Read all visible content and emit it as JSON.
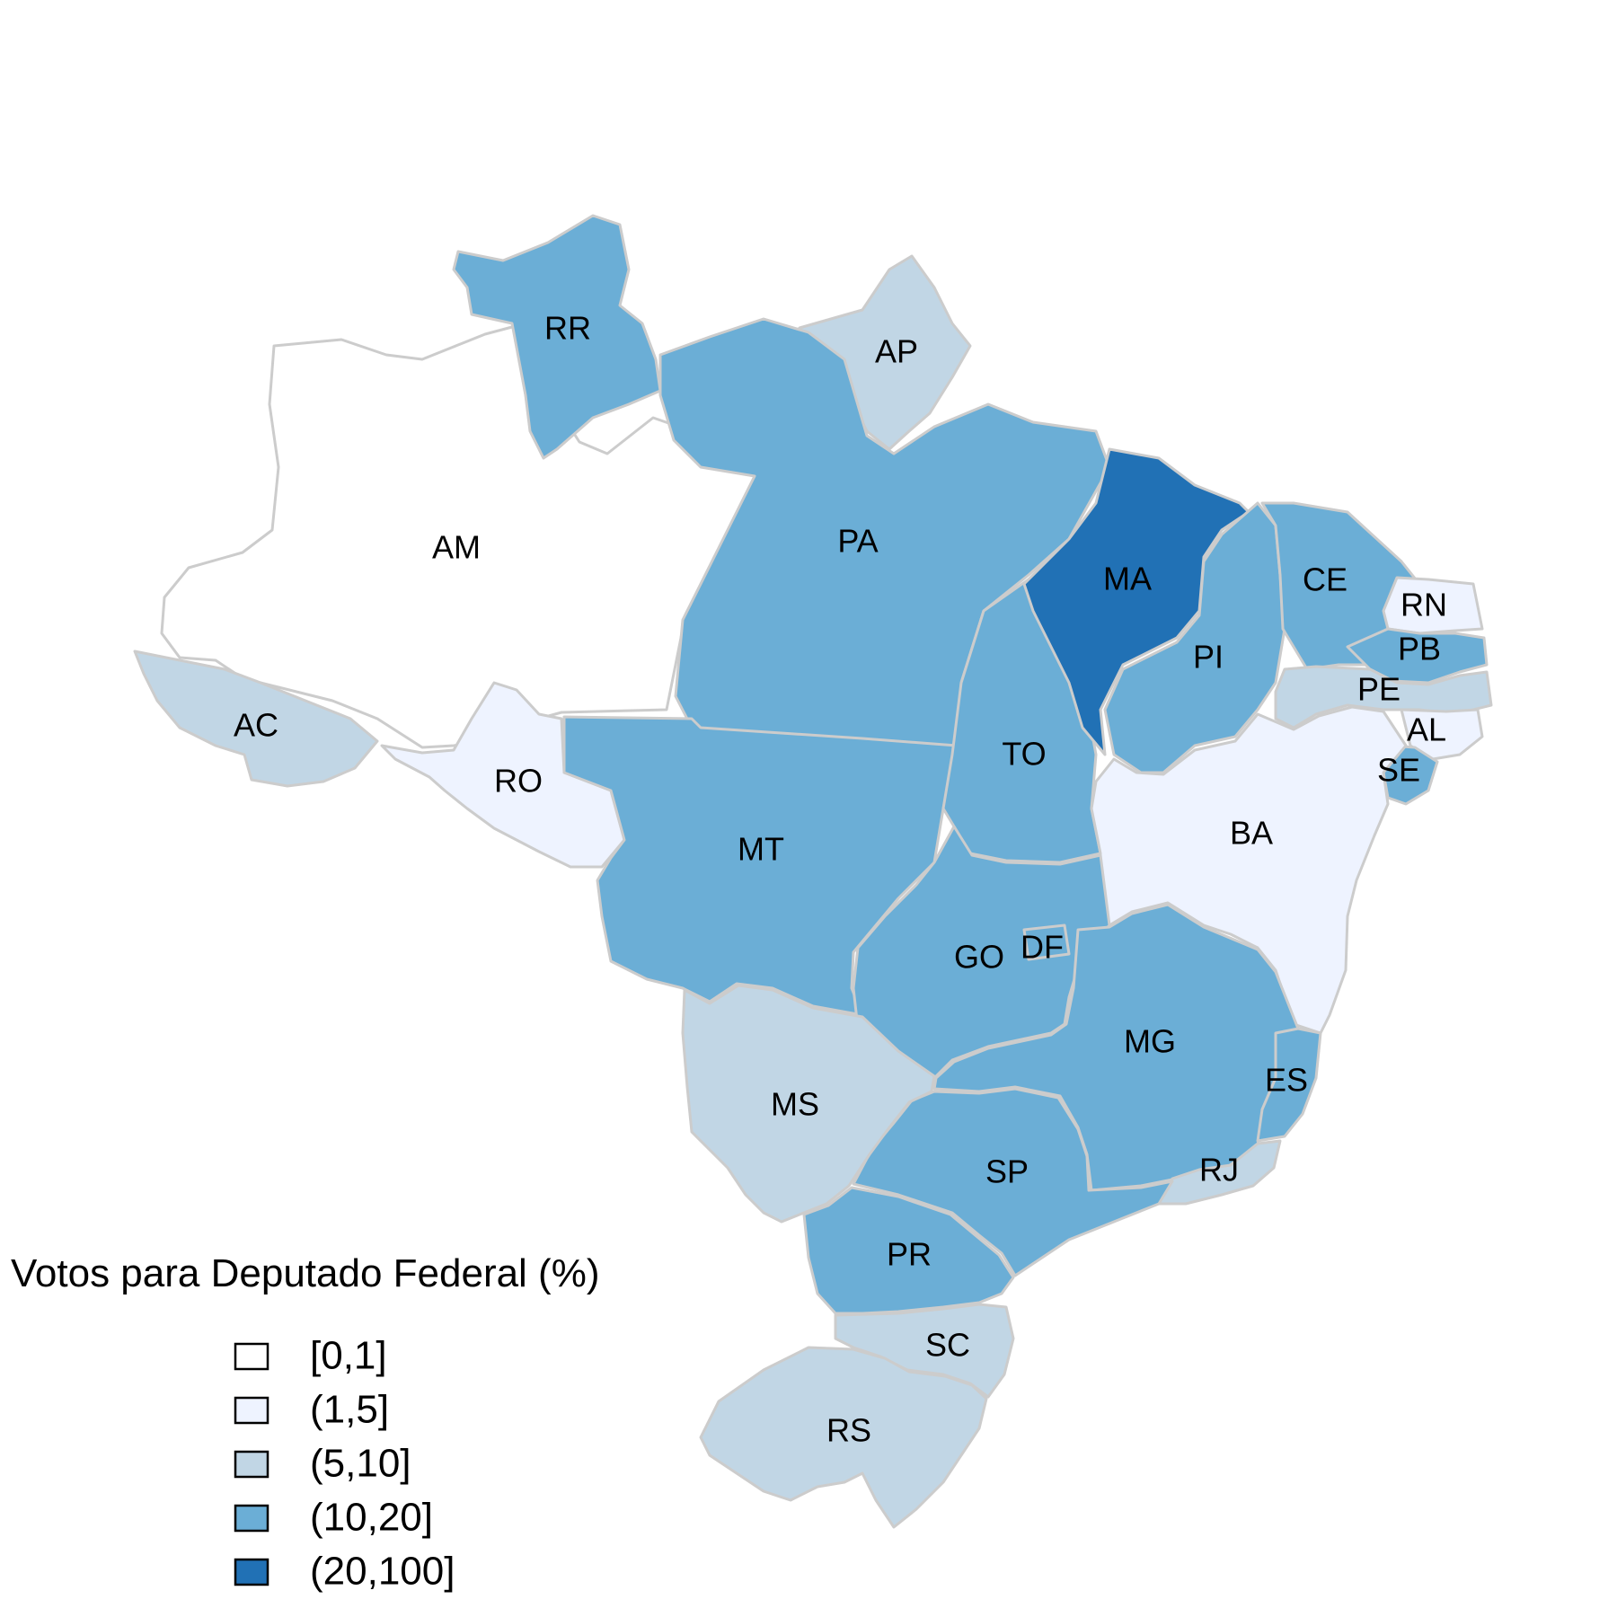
{
  "legend": {
    "title": "Votos para Deputado Federal (%)",
    "items": [
      {
        "label": "[0,1]",
        "color": "#ffffff"
      },
      {
        "label": "(1,5]",
        "color": "#eef3ff"
      },
      {
        "label": "(5,10]",
        "color": "#c1d6e5"
      },
      {
        "label": "(10,20]",
        "color": "#6baed6"
      },
      {
        "label": "(20,100]",
        "color": "#2171b5"
      }
    ]
  },
  "states": [
    {
      "code": "AM",
      "bin": 0
    },
    {
      "code": "RR",
      "bin": 3
    },
    {
      "code": "AP",
      "bin": 2
    },
    {
      "code": "PA",
      "bin": 3
    },
    {
      "code": "AC",
      "bin": 2
    },
    {
      "code": "RO",
      "bin": 1
    },
    {
      "code": "MT",
      "bin": 3
    },
    {
      "code": "TO",
      "bin": 3
    },
    {
      "code": "MA",
      "bin": 4
    },
    {
      "code": "PI",
      "bin": 3
    },
    {
      "code": "CE",
      "bin": 3
    },
    {
      "code": "RN",
      "bin": 1
    },
    {
      "code": "PB",
      "bin": 3
    },
    {
      "code": "PE",
      "bin": 2
    },
    {
      "code": "AL",
      "bin": 1
    },
    {
      "code": "SE",
      "bin": 3
    },
    {
      "code": "BA",
      "bin": 1
    },
    {
      "code": "GO",
      "bin": 3
    },
    {
      "code": "DF",
      "bin": 3
    },
    {
      "code": "MG",
      "bin": 3
    },
    {
      "code": "ES",
      "bin": 3
    },
    {
      "code": "RJ",
      "bin": 2
    },
    {
      "code": "SP",
      "bin": 3
    },
    {
      "code": "MS",
      "bin": 2
    },
    {
      "code": "PR",
      "bin": 3
    },
    {
      "code": "SC",
      "bin": 2
    },
    {
      "code": "RS",
      "bin": 2
    }
  ]
}
